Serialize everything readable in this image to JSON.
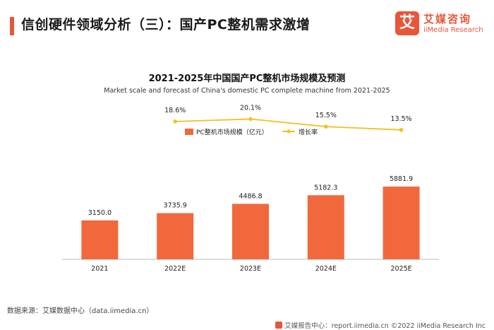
{
  "header": {
    "title": "信创硬件领域分析（三）：国产PC整机需求激增"
  },
  "logo": {
    "mark": "艾",
    "name_cn": "艾媒咨询",
    "name_en": "iiMedia Research"
  },
  "chart_data": {
    "type": "bar",
    "title": "2021-2025年中国国产PC整机市场规模及预测",
    "subtitle": "Market scale and forecast of China's domestic PC complete machine from 2021-2025",
    "categories": [
      "2021",
      "2022E",
      "2023E",
      "2024E",
      "2025E"
    ],
    "series": [
      {
        "name": "PC整机市场规模（亿元）",
        "kind": "bar",
        "values": [
          3150.0,
          3735.9,
          4486.8,
          5182.3,
          5881.9
        ],
        "labels": [
          "3150.0",
          "3735.9",
          "4486.8",
          "5182.3",
          "5881.9"
        ],
        "color": "#f2683d"
      },
      {
        "name": "增长率",
        "kind": "line",
        "values": [
          null,
          18.6,
          20.1,
          15.5,
          13.5
        ],
        "labels": [
          "",
          "18.6%",
          "20.1%",
          "15.5%",
          "13.5%"
        ],
        "color": "#f5c022"
      }
    ],
    "bar_axis": [
      0,
      12000
    ],
    "line_axis": [
      -65,
      25
    ],
    "legend_position": "top-center",
    "grid": false
  },
  "source": "数据来源：艾媒数据中心（data.iimedia.cn）",
  "footer": "艾媒报告中心：report.iimedia.cn  ©2022  iiMedia Research Inc"
}
